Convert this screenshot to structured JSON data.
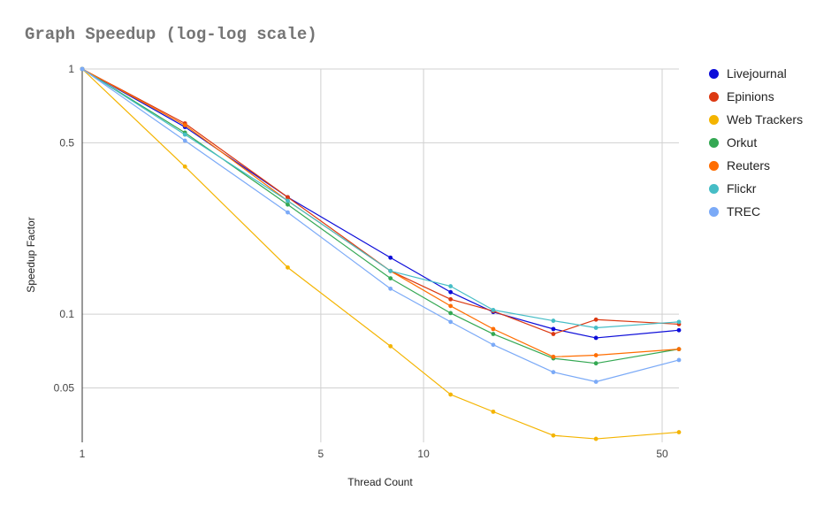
{
  "chart_data": {
    "type": "line",
    "title": "Graph Speedup (log-log scale)",
    "xlabel": "Thread Count",
    "ylabel": "Speedup Factor",
    "x_scale": "log",
    "y_scale": "log",
    "xlim": [
      1,
      56
    ],
    "ylim": [
      0.03,
      1
    ],
    "x_ticks": [
      {
        "value": 1,
        "label": "1"
      },
      {
        "value": 5,
        "label": "5"
      },
      {
        "value": 10,
        "label": "10"
      },
      {
        "value": 50,
        "label": "50"
      }
    ],
    "y_ticks": [
      {
        "value": 1,
        "label": "1"
      },
      {
        "value": 0.5,
        "label": "0.5"
      },
      {
        "value": 0.1,
        "label": "0.1"
      },
      {
        "value": 0.05,
        "label": "0.05"
      }
    ],
    "grid": true,
    "legend_position": "right",
    "x": [
      1,
      2,
      4,
      8,
      12,
      16,
      24,
      32,
      56
    ],
    "series": [
      {
        "name": "Livejournal",
        "color": "#0d0dd9",
        "values": [
          1,
          0.58,
          0.3,
          0.17,
          0.123,
          0.102,
          0.087,
          0.08,
          0.086
        ]
      },
      {
        "name": "Epinions",
        "color": "#dc3912",
        "values": [
          1,
          0.6,
          0.3,
          0.15,
          0.115,
          0.103,
          0.083,
          0.095,
          0.091
        ]
      },
      {
        "name": "Web Trackers",
        "color": "#f4b400",
        "values": [
          1,
          0.4,
          0.155,
          0.074,
          0.047,
          0.04,
          0.032,
          0.031,
          0.033
        ]
      },
      {
        "name": "Orkut",
        "color": "#34a853",
        "values": [
          1,
          0.55,
          0.28,
          0.14,
          0.101,
          0.083,
          0.066,
          0.063,
          0.072
        ]
      },
      {
        "name": "Reuters",
        "color": "#ff6d00",
        "values": [
          1,
          0.59,
          0.29,
          0.15,
          0.108,
          0.087,
          0.067,
          0.068,
          0.072
        ]
      },
      {
        "name": "Flickr",
        "color": "#46bdc6",
        "values": [
          1,
          0.54,
          0.29,
          0.15,
          0.13,
          0.104,
          0.094,
          0.088,
          0.093
        ]
      },
      {
        "name": "TREC",
        "color": "#7baaf7",
        "values": [
          1,
          0.51,
          0.26,
          0.127,
          0.093,
          0.075,
          0.058,
          0.053,
          0.065
        ]
      }
    ]
  }
}
